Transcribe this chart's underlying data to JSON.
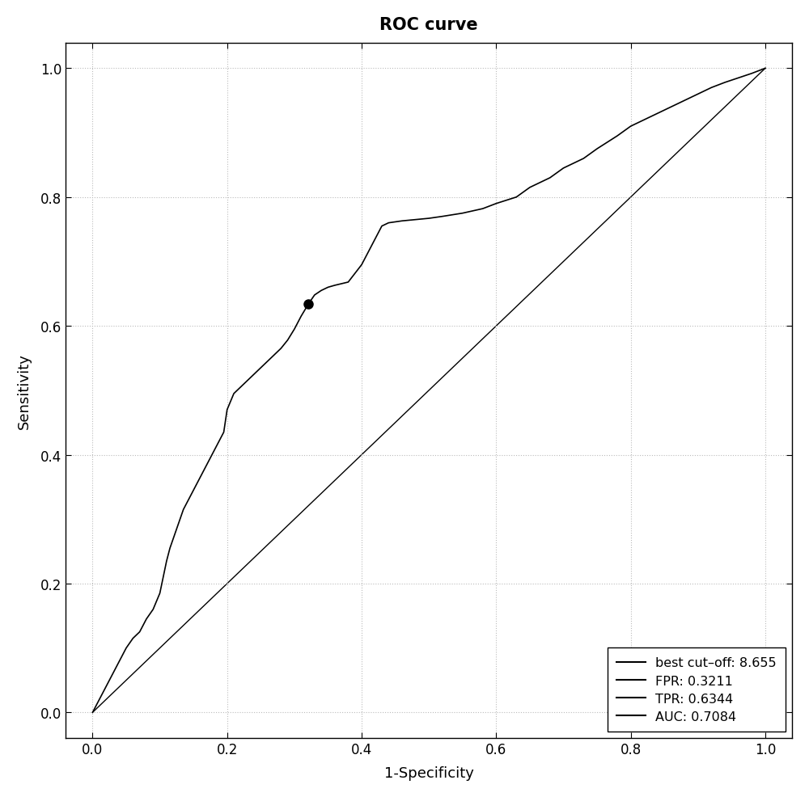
{
  "title": "ROC curve",
  "xlabel": "1-Specificity",
  "ylabel": "Sensitivity",
  "xlim": [
    -0.04,
    1.04
  ],
  "ylim": [
    -0.04,
    1.04
  ],
  "xticks": [
    0.0,
    0.2,
    0.4,
    0.6,
    0.8,
    1.0
  ],
  "yticks": [
    0.0,
    0.2,
    0.4,
    0.6,
    0.8,
    1.0
  ],
  "fpr_point": 0.3211,
  "tpr_point": 0.6344,
  "legend_labels": [
    "best cut–off: 8.655",
    "FPR: 0.3211",
    "TPR: 0.6344",
    "AUC: 0.7084"
  ],
  "line_color": "#000000",
  "diag_color": "#000000",
  "bg_color": "#ffffff",
  "grid_color": "#bbbbbb",
  "title_fontsize": 15,
  "axis_fontsize": 13,
  "tick_fontsize": 12,
  "roc_fpr": [
    0.0,
    0.005,
    0.01,
    0.02,
    0.03,
    0.04,
    0.05,
    0.06,
    0.07,
    0.08,
    0.09,
    0.1,
    0.105,
    0.11,
    0.115,
    0.12,
    0.125,
    0.13,
    0.135,
    0.14,
    0.145,
    0.15,
    0.155,
    0.16,
    0.165,
    0.17,
    0.175,
    0.18,
    0.185,
    0.19,
    0.195,
    0.2,
    0.21,
    0.22,
    0.23,
    0.24,
    0.25,
    0.26,
    0.27,
    0.28,
    0.29,
    0.3,
    0.31,
    0.3211,
    0.33,
    0.34,
    0.35,
    0.36,
    0.38,
    0.4,
    0.41,
    0.42,
    0.425,
    0.43,
    0.44,
    0.46,
    0.48,
    0.5,
    0.52,
    0.55,
    0.58,
    0.6,
    0.63,
    0.65,
    0.68,
    0.7,
    0.73,
    0.75,
    0.78,
    0.8,
    0.83,
    0.85,
    0.88,
    0.9,
    0.92,
    0.94,
    0.96,
    0.98,
    1.0
  ],
  "roc_tpr": [
    0.0,
    0.01,
    0.02,
    0.04,
    0.06,
    0.08,
    0.1,
    0.115,
    0.125,
    0.145,
    0.16,
    0.185,
    0.21,
    0.235,
    0.255,
    0.27,
    0.285,
    0.3,
    0.315,
    0.325,
    0.335,
    0.345,
    0.355,
    0.365,
    0.375,
    0.385,
    0.395,
    0.405,
    0.415,
    0.425,
    0.435,
    0.47,
    0.495,
    0.505,
    0.515,
    0.525,
    0.535,
    0.545,
    0.555,
    0.565,
    0.578,
    0.595,
    0.615,
    0.6344,
    0.648,
    0.655,
    0.66,
    0.663,
    0.668,
    0.695,
    0.715,
    0.735,
    0.745,
    0.755,
    0.76,
    0.763,
    0.765,
    0.767,
    0.77,
    0.775,
    0.782,
    0.79,
    0.8,
    0.815,
    0.83,
    0.845,
    0.86,
    0.875,
    0.895,
    0.91,
    0.925,
    0.935,
    0.95,
    0.96,
    0.97,
    0.978,
    0.985,
    0.992,
    1.0
  ]
}
